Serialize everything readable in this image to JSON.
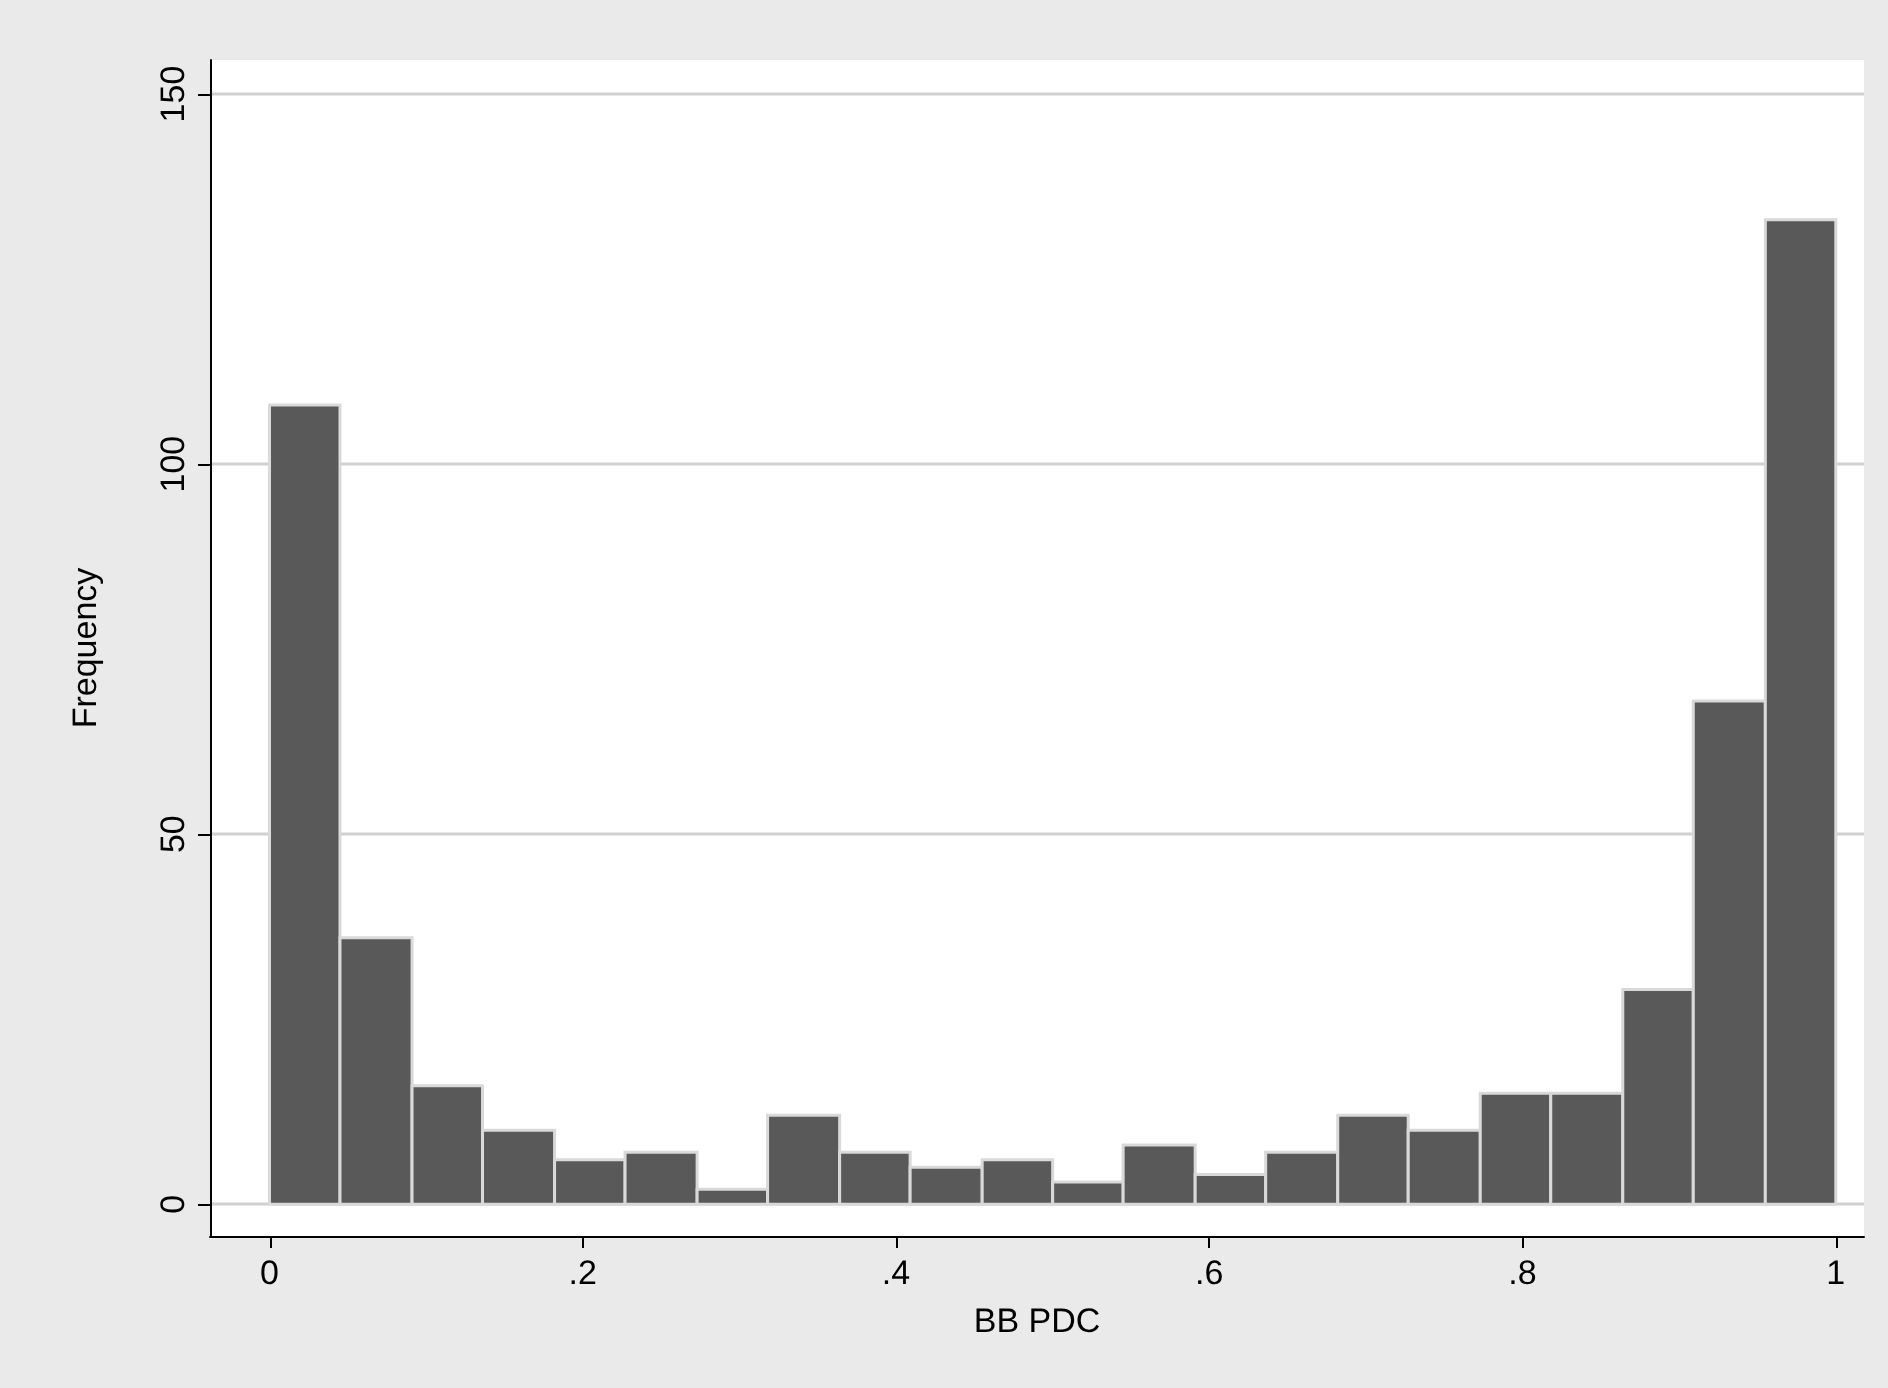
{
  "chart_data": {
    "type": "histogram",
    "xlabel": "BB PDC",
    "ylabel": "Frequency",
    "bins": [
      0,
      0.045,
      0.091,
      0.136,
      0.182,
      0.227,
      0.273,
      0.318,
      0.364,
      0.409,
      0.455,
      0.5,
      0.545,
      0.591,
      0.636,
      0.682,
      0.727,
      0.773,
      0.818,
      0.864,
      0.909,
      0.955,
      1
    ],
    "values": [
      108,
      36,
      16,
      10,
      6,
      7,
      2,
      12,
      7,
      5,
      6,
      3,
      8,
      4,
      7,
      12,
      10,
      15,
      15,
      29,
      68,
      133
    ],
    "color": "#595959",
    "xlim": [
      -0.038,
      1.018
    ],
    "xticks": [
      0,
      {
        "value": 0.2,
        "label": ".2"
      },
      {
        "value": 0.4,
        "label": ".4"
      },
      {
        "value": 0.6,
        "label": ".6"
      },
      {
        "value": 0.8,
        "label": ".8"
      },
      1
    ],
    "ylim": [
      -4.3,
      154.6
    ],
    "yticks": [
      0,
      50,
      100,
      150
    ],
    "grid": "y"
  }
}
